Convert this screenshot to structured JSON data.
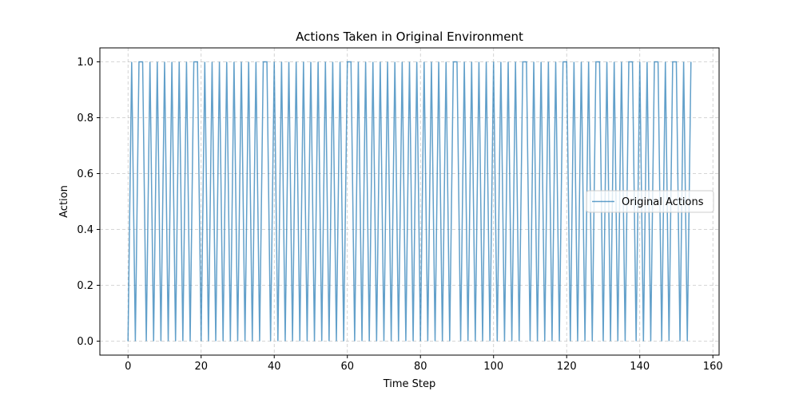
{
  "chart_data": {
    "type": "line",
    "title": "Actions Taken in Original Environment",
    "xlabel": "Time Step",
    "ylabel": "Action",
    "xlim": [
      -7.7,
      161.7
    ],
    "ylim": [
      -0.05,
      1.05
    ],
    "xticks": [
      0,
      20,
      40,
      60,
      80,
      100,
      120,
      140,
      160
    ],
    "yticks": [
      0.0,
      0.2,
      0.4,
      0.6,
      0.8,
      1.0
    ],
    "xtick_labels": [
      "0",
      "20",
      "40",
      "60",
      "80",
      "100",
      "120",
      "140",
      "160"
    ],
    "ytick_labels": [
      "0.0",
      "0.2",
      "0.4",
      "0.6",
      "0.8",
      "1.0"
    ],
    "grid": true,
    "legend_position": "center right",
    "series": [
      {
        "name": "Original Actions",
        "color": "#1f77b4",
        "x": [
          0,
          1,
          2,
          3,
          4,
          5,
          6,
          7,
          8,
          9,
          10,
          11,
          12,
          13,
          14,
          15,
          16,
          17,
          18,
          19,
          20,
          21,
          22,
          23,
          24,
          25,
          26,
          27,
          28,
          29,
          30,
          31,
          32,
          33,
          34,
          35,
          36,
          37,
          38,
          39,
          40,
          41,
          42,
          43,
          44,
          45,
          46,
          47,
          48,
          49,
          50,
          51,
          52,
          53,
          54,
          55,
          56,
          57,
          58,
          59,
          60,
          61,
          62,
          63,
          64,
          65,
          66,
          67,
          68,
          69,
          70,
          71,
          72,
          73,
          74,
          75,
          76,
          77,
          78,
          79,
          80,
          81,
          82,
          83,
          84,
          85,
          86,
          87,
          88,
          89,
          90,
          91,
          92,
          93,
          94,
          95,
          96,
          97,
          98,
          99,
          100,
          101,
          102,
          103,
          104,
          105,
          106,
          107,
          108,
          109,
          110,
          111,
          112,
          113,
          114,
          115,
          116,
          117,
          118,
          119,
          120,
          121,
          122,
          123,
          124,
          125,
          126,
          127,
          128,
          129,
          130,
          131,
          132,
          133,
          134,
          135,
          136,
          137,
          138,
          139,
          140,
          141,
          142,
          143,
          144,
          145,
          146,
          147,
          148,
          149,
          150,
          151,
          152,
          153,
          154
        ],
        "y": [
          0,
          1,
          0,
          1,
          1,
          0,
          1,
          0,
          1,
          0,
          1,
          0,
          1,
          0,
          1,
          0,
          1,
          0,
          1,
          1,
          0,
          1,
          0,
          1,
          0,
          1,
          0,
          1,
          0,
          1,
          0,
          1,
          0,
          1,
          0,
          1,
          0,
          1,
          1,
          0,
          1,
          0,
          1,
          0,
          1,
          0,
          1,
          0,
          1,
          0,
          1,
          0,
          1,
          0,
          1,
          0,
          1,
          0,
          1,
          0,
          1,
          1,
          0,
          1,
          0,
          1,
          0,
          1,
          0,
          1,
          0,
          1,
          0,
          1,
          0,
          1,
          0,
          1,
          0,
          1,
          0,
          1,
          0,
          1,
          0,
          1,
          0,
          1,
          0,
          1,
          1,
          0,
          1,
          0,
          1,
          0,
          1,
          0,
          1,
          0,
          1,
          0,
          1,
          0,
          1,
          0,
          1,
          0,
          1,
          1,
          0,
          1,
          0,
          1,
          0,
          1,
          0,
          1,
          0,
          1,
          1,
          0,
          1,
          0,
          1,
          0,
          1,
          0,
          1,
          1,
          0,
          1,
          0,
          1,
          0,
          1,
          0,
          1,
          1,
          0,
          1,
          0,
          1,
          0,
          1,
          1,
          0,
          1,
          0,
          1,
          1,
          0,
          1,
          0,
          1
        ]
      }
    ]
  }
}
